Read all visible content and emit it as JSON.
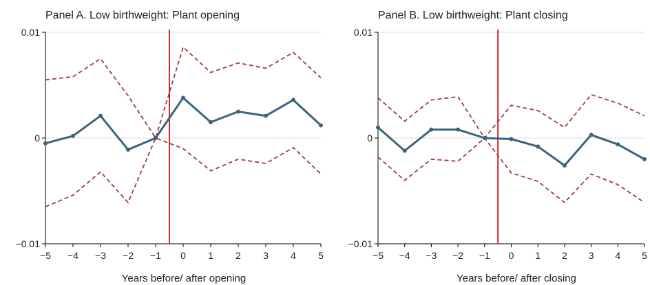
{
  "chart_data": [
    {
      "type": "line",
      "title": "Panel A. Low birthweight: Plant opening",
      "xlabel": "Years before/ after opening",
      "ylabel": "",
      "x": [
        -5,
        -4,
        -3,
        -2,
        -1,
        0,
        1,
        2,
        3,
        4,
        5
      ],
      "xticklabels": [
        "−5",
        "−4",
        "−3",
        "−2",
        "−1",
        "0",
        "1",
        "2",
        "3",
        "4",
        "5"
      ],
      "yticks": [
        -0.01,
        0,
        0.01
      ],
      "yticklabels": [
        "−0.01",
        "0",
        "0.01"
      ],
      "ylim": [
        -0.01,
        0.01
      ],
      "xlim": [
        -5,
        5
      ],
      "vline_x": -0.5,
      "grid": "horizontal",
      "series": [
        {
          "role": "estimate",
          "style": "solid-markers",
          "values": [
            -0.0005,
            0.0002,
            0.0021,
            -0.0011,
            0.0,
            0.0038,
            0.0015,
            0.0025,
            0.0021,
            0.0036,
            0.0012
          ]
        },
        {
          "role": "upper-ci",
          "style": "dashed",
          "values": [
            0.0055,
            0.0058,
            0.0075,
            0.004,
            0.0,
            0.0086,
            0.0062,
            0.0071,
            0.0066,
            0.0081,
            0.0057
          ]
        },
        {
          "role": "lower-ci",
          "style": "dashed",
          "values": [
            -0.0065,
            -0.0054,
            -0.0032,
            -0.0061,
            0.0,
            -0.001,
            -0.0031,
            -0.002,
            -0.0024,
            -0.0009,
            -0.0034
          ]
        }
      ]
    },
    {
      "type": "line",
      "title": "Panel B. Low birthweight: Plant closing",
      "xlabel": "Years before/ after closing",
      "ylabel": "",
      "x": [
        -5,
        -4,
        -3,
        -2,
        -1,
        0,
        1,
        2,
        3,
        4,
        5
      ],
      "xticklabels": [
        "−5",
        "−4",
        "−3",
        "−2",
        "−1",
        "0",
        "1",
        "2",
        "3",
        "4",
        "5"
      ],
      "yticks": [
        -0.01,
        0,
        0.01
      ],
      "yticklabels": [
        "−0.01",
        "0",
        "0.01"
      ],
      "ylim": [
        -0.01,
        0.01
      ],
      "xlim": [
        -5,
        5
      ],
      "vline_x": -0.5,
      "grid": "horizontal",
      "series": [
        {
          "role": "estimate",
          "style": "solid-markers",
          "values": [
            0.001,
            -0.0012,
            0.0008,
            0.0008,
            0.0,
            -0.0001,
            -0.0008,
            -0.0026,
            0.0003,
            -0.0006,
            -0.002
          ]
        },
        {
          "role": "upper-ci",
          "style": "dashed",
          "values": [
            0.0038,
            0.0016,
            0.0036,
            0.0039,
            0.0,
            0.0031,
            0.0026,
            0.001,
            0.0041,
            0.0033,
            0.0021
          ]
        },
        {
          "role": "lower-ci",
          "style": "dashed",
          "values": [
            -0.0018,
            -0.004,
            -0.002,
            -0.0022,
            0.0,
            -0.0033,
            -0.0041,
            -0.0061,
            -0.0034,
            -0.0044,
            -0.0061
          ]
        }
      ]
    }
  ],
  "colors": {
    "estimate": "#3a6479",
    "ci": "#a03b3b",
    "vline": "#cc2b2b",
    "grid": "#dcdcdc",
    "axis": "#000000"
  }
}
